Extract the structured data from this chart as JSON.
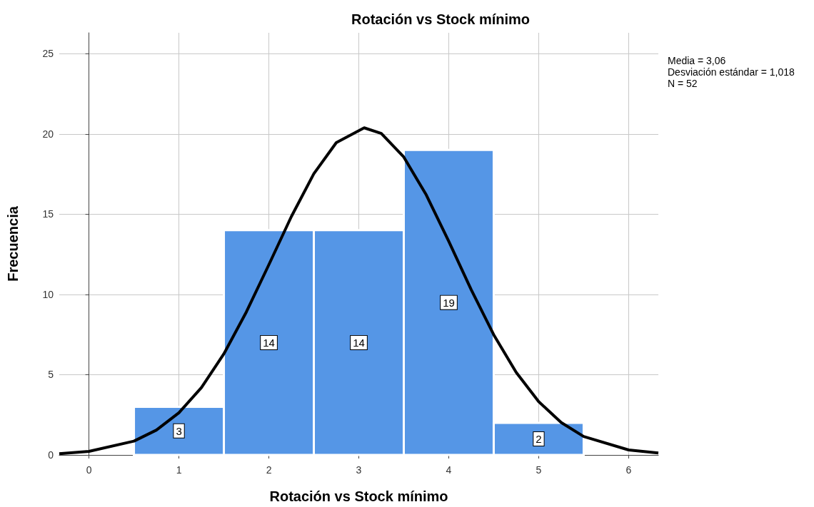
{
  "chart_data": {
    "type": "histogram",
    "title": "Rotación vs Stock mínimo",
    "xlabel": "Rotación vs Stock mínimo",
    "ylabel": "Frecuencia",
    "annotations": [
      "Media = 3,06",
      "Desviación estándar = 1,018",
      "N = 52"
    ],
    "series": [
      {
        "type": "histogram",
        "color": "#5596e6",
        "bins": [
          0.5,
          1.5,
          2.5,
          3.5,
          4.5,
          5.5
        ],
        "values": [
          3,
          14,
          14,
          19,
          2
        ],
        "value_labels": [
          "3",
          "14",
          "14",
          "19",
          "2"
        ]
      },
      {
        "type": "line",
        "color": "#000000",
        "x": [
          -0.33,
          0,
          0.5,
          0.75,
          1,
          1.25,
          1.5,
          1.75,
          2,
          2.25,
          2.5,
          2.75,
          3.06,
          3.25,
          3.5,
          3.75,
          4,
          4.25,
          4.5,
          4.75,
          5,
          5.25,
          5.5,
          6,
          6.33
        ],
        "values": [
          0.08,
          0.22,
          0.86,
          1.55,
          2.63,
          4.19,
          6.3,
          8.91,
          11.85,
          14.85,
          17.52,
          19.46,
          20.38,
          20.03,
          18.56,
          16.2,
          13.31,
          10.29,
          7.49,
          5.14,
          3.32,
          2.02,
          1.15,
          0.31,
          0.12
        ]
      }
    ],
    "grid": true,
    "xlim": [
      -0.33,
      6.33
    ],
    "xticks": [
      0,
      1,
      2,
      3,
      4,
      5,
      6
    ],
    "ylim": [
      0,
      26.3
    ],
    "yticks": [
      0,
      5,
      10,
      15,
      20,
      25
    ]
  }
}
